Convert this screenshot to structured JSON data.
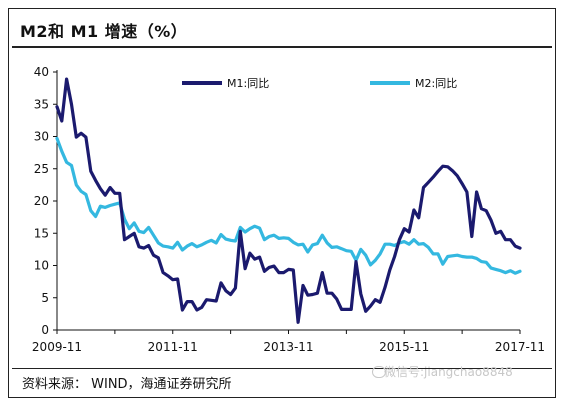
{
  "title": "M2和 M1 增速（%）",
  "source": "资料来源： WIND，海通证券研究所",
  "watermark": "微信号:jiangchao8848",
  "chart_data": {
    "type": "line",
    "title": "M2和 M1 增速（%）",
    "xlabel": "",
    "ylabel": "",
    "ylim": [
      0,
      40
    ],
    "yticks": [
      0,
      5,
      10,
      15,
      20,
      25,
      30,
      35,
      40
    ],
    "x_ticks": [
      "2009-11",
      "2011-11",
      "2013-11",
      "2015-11",
      "2017-11"
    ],
    "x_range": [
      "2009-11",
      "2017-11"
    ],
    "grid": false,
    "legend": "top",
    "colors": {
      "M1": "#1b1a6e",
      "M2": "#34b8e0"
    },
    "series": [
      {
        "name": "M1:同比",
        "color": "#1b1a6e",
        "x": [
          "2009-11",
          "2009-12",
          "2010-01",
          "2010-02",
          "2010-03",
          "2010-04",
          "2010-05",
          "2010-06",
          "2010-07",
          "2010-08",
          "2010-09",
          "2010-10",
          "2010-11",
          "2010-12",
          "2011-01",
          "2011-02",
          "2011-03",
          "2011-04",
          "2011-05",
          "2011-06",
          "2011-07",
          "2011-08",
          "2011-09",
          "2011-10",
          "2011-11",
          "2011-12",
          "2012-01",
          "2012-02",
          "2012-03",
          "2012-04",
          "2012-05",
          "2012-06",
          "2012-07",
          "2012-08",
          "2012-09",
          "2012-10",
          "2012-11",
          "2012-12",
          "2013-01",
          "2013-02",
          "2013-03",
          "2013-04",
          "2013-05",
          "2013-06",
          "2013-07",
          "2013-08",
          "2013-09",
          "2013-10",
          "2013-11",
          "2013-12",
          "2014-01",
          "2014-02",
          "2014-03",
          "2014-04",
          "2014-05",
          "2014-06",
          "2014-07",
          "2014-08",
          "2014-09",
          "2014-10",
          "2014-11",
          "2014-12",
          "2015-01",
          "2015-02",
          "2015-03",
          "2015-04",
          "2015-05",
          "2015-06",
          "2015-07",
          "2015-08",
          "2015-09",
          "2015-10",
          "2015-11",
          "2015-12",
          "2016-01",
          "2016-02",
          "2016-03",
          "2016-04",
          "2016-05",
          "2016-06",
          "2016-07",
          "2016-08",
          "2016-09",
          "2016-10",
          "2016-11",
          "2016-12",
          "2017-01",
          "2017-02",
          "2017-03",
          "2017-04",
          "2017-05",
          "2017-06",
          "2017-07",
          "2017-08",
          "2017-09",
          "2017-10",
          "2017-11"
        ],
        "values": [
          34.6,
          32.4,
          38.9,
          35.0,
          29.9,
          30.5,
          29.9,
          24.6,
          23.2,
          21.9,
          20.9,
          22.1,
          21.2,
          21.2,
          14.0,
          14.5,
          15.0,
          12.9,
          12.7,
          13.1,
          11.6,
          11.2,
          8.9,
          8.4,
          7.8,
          7.9,
          3.1,
          4.4,
          4.4,
          3.1,
          3.5,
          4.7,
          4.6,
          4.5,
          7.3,
          6.1,
          5.5,
          6.5,
          15.3,
          9.5,
          11.9,
          11.0,
          11.3,
          9.1,
          9.7,
          9.9,
          8.9,
          8.9,
          9.4,
          9.3,
          1.2,
          6.9,
          5.4,
          5.5,
          5.7,
          8.9,
          5.7,
          5.7,
          4.8,
          3.2,
          3.2,
          3.2,
          10.6,
          5.6,
          2.9,
          3.7,
          4.7,
          4.3,
          6.6,
          9.3,
          11.4,
          14.0,
          15.7,
          15.2,
          18.6,
          17.4,
          22.1,
          22.9,
          23.7,
          24.6,
          25.4,
          25.3,
          24.7,
          23.9,
          22.7,
          21.4,
          14.5,
          21.4,
          18.8,
          18.5,
          17.0,
          15.0,
          15.3,
          14.0,
          14.0,
          13.0,
          12.7
        ]
      },
      {
        "name": "M2:同比",
        "color": "#34b8e0",
        "x": [
          "2009-11",
          "2009-12",
          "2010-01",
          "2010-02",
          "2010-03",
          "2010-04",
          "2010-05",
          "2010-06",
          "2010-07",
          "2010-08",
          "2010-09",
          "2010-10",
          "2010-11",
          "2010-12",
          "2011-01",
          "2011-02",
          "2011-03",
          "2011-04",
          "2011-05",
          "2011-06",
          "2011-07",
          "2011-08",
          "2011-09",
          "2011-10",
          "2011-11",
          "2011-12",
          "2012-01",
          "2012-02",
          "2012-03",
          "2012-04",
          "2012-05",
          "2012-06",
          "2012-07",
          "2012-08",
          "2012-09",
          "2012-10",
          "2012-11",
          "2012-12",
          "2013-01",
          "2013-02",
          "2013-03",
          "2013-04",
          "2013-05",
          "2013-06",
          "2013-07",
          "2013-08",
          "2013-09",
          "2013-10",
          "2013-11",
          "2013-12",
          "2014-01",
          "2014-02",
          "2014-03",
          "2014-04",
          "2014-05",
          "2014-06",
          "2014-07",
          "2014-08",
          "2014-09",
          "2014-10",
          "2014-11",
          "2014-12",
          "2015-01",
          "2015-02",
          "2015-03",
          "2015-04",
          "2015-05",
          "2015-06",
          "2015-07",
          "2015-08",
          "2015-09",
          "2015-10",
          "2015-11",
          "2015-12",
          "2016-01",
          "2016-02",
          "2016-03",
          "2016-04",
          "2016-05",
          "2016-06",
          "2016-07",
          "2016-08",
          "2016-09",
          "2016-10",
          "2016-11",
          "2016-12",
          "2017-01",
          "2017-02",
          "2017-03",
          "2017-04",
          "2017-05",
          "2017-06",
          "2017-07",
          "2017-08",
          "2017-09",
          "2017-10",
          "2017-11"
        ],
        "values": [
          29.7,
          27.7,
          26.0,
          25.5,
          22.5,
          21.5,
          21.0,
          18.5,
          17.6,
          19.2,
          19.0,
          19.3,
          19.5,
          19.7,
          17.2,
          15.7,
          16.6,
          15.3,
          15.1,
          15.9,
          14.7,
          13.5,
          13.0,
          12.9,
          12.7,
          13.6,
          12.4,
          13.0,
          13.4,
          12.9,
          13.2,
          13.6,
          13.9,
          13.5,
          14.8,
          14.1,
          13.9,
          13.8,
          15.9,
          15.2,
          15.7,
          16.1,
          15.8,
          14.0,
          14.5,
          14.7,
          14.2,
          14.3,
          14.2,
          13.6,
          13.2,
          13.3,
          12.1,
          13.2,
          13.4,
          14.7,
          13.5,
          12.8,
          12.9,
          12.6,
          12.3,
          12.2,
          10.8,
          12.5,
          11.6,
          10.1,
          10.8,
          11.8,
          13.3,
          13.3,
          13.1,
          13.5,
          13.7,
          13.3,
          14.0,
          13.3,
          13.4,
          12.8,
          11.8,
          11.8,
          10.2,
          11.4,
          11.5,
          11.6,
          11.4,
          11.3,
          11.3,
          11.1,
          10.6,
          10.5,
          9.6,
          9.4,
          9.2,
          8.9,
          9.2,
          8.8,
          9.1
        ]
      }
    ]
  }
}
